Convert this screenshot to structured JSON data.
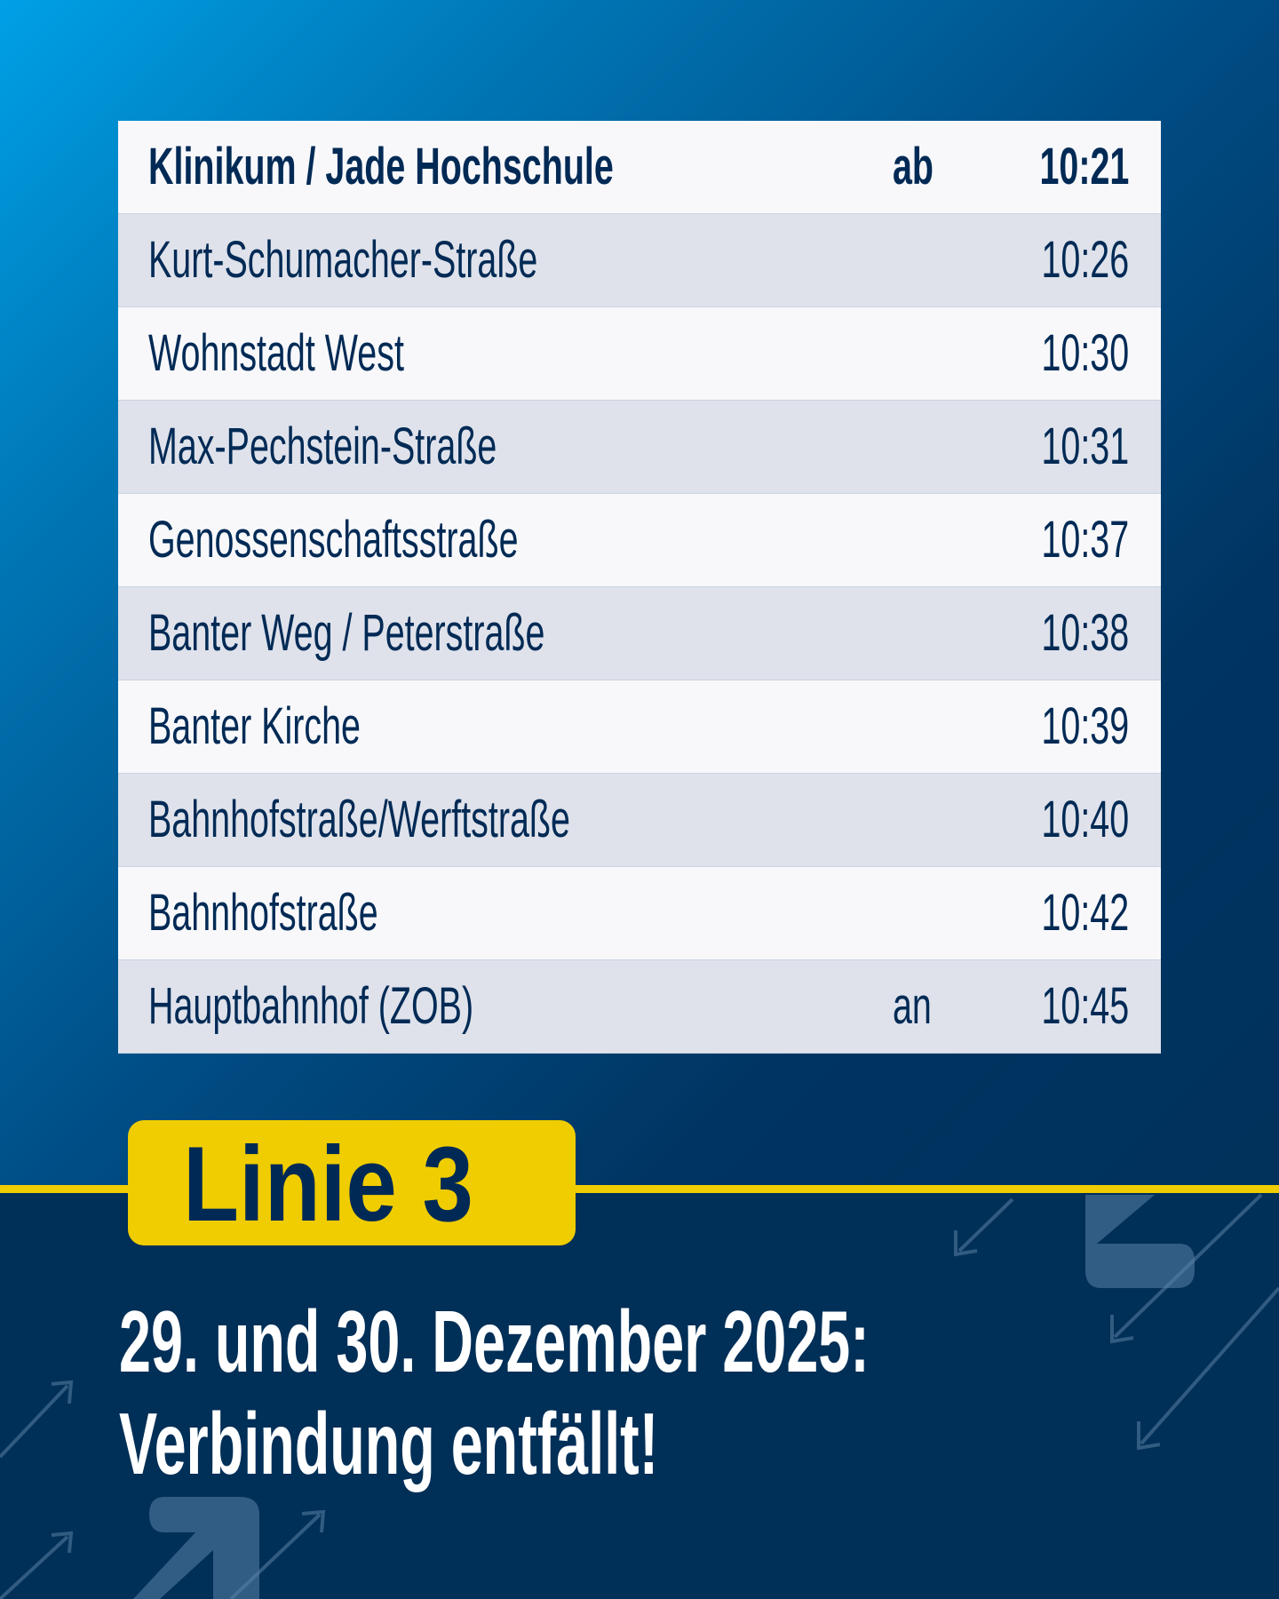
{
  "timetable": {
    "rows": [
      {
        "stop": "Klinikum / Jade Hochschule",
        "mark": "ab",
        "time": "10:21"
      },
      {
        "stop": "Kurt-Schumacher-Straße",
        "mark": "",
        "time": "10:26"
      },
      {
        "stop": "Wohnstadt West",
        "mark": "",
        "time": "10:30"
      },
      {
        "stop": "Max-Pechstein-Straße",
        "mark": "",
        "time": "10:31"
      },
      {
        "stop": "Genossenschaftsstraße",
        "mark": "",
        "time": "10:37"
      },
      {
        "stop": "Banter Weg / Peterstraße",
        "mark": "",
        "time": "10:38"
      },
      {
        "stop": "Banter Kirche",
        "mark": "",
        "time": "10:39"
      },
      {
        "stop": "Bahnhofstraße/Werftstraße",
        "mark": "",
        "time": "10:40"
      },
      {
        "stop": "Bahnhofstraße",
        "mark": "",
        "time": "10:42"
      },
      {
        "stop": "Hauptbahnhof (ZOB)",
        "mark": "an",
        "time": "10:45"
      }
    ]
  },
  "badge": {
    "label": "Linie 3"
  },
  "headline": {
    "line1": "29. und 30. Dezember 2025:",
    "line2": "Verbindung entfällt!"
  },
  "colors": {
    "accent_yellow": "#f0cd00",
    "navy": "#002f57",
    "text_navy": "#002a55",
    "gradient_start": "#00a0e6"
  },
  "icons": [
    "arrow-up-right-icon",
    "arrow-down-left-icon"
  ]
}
